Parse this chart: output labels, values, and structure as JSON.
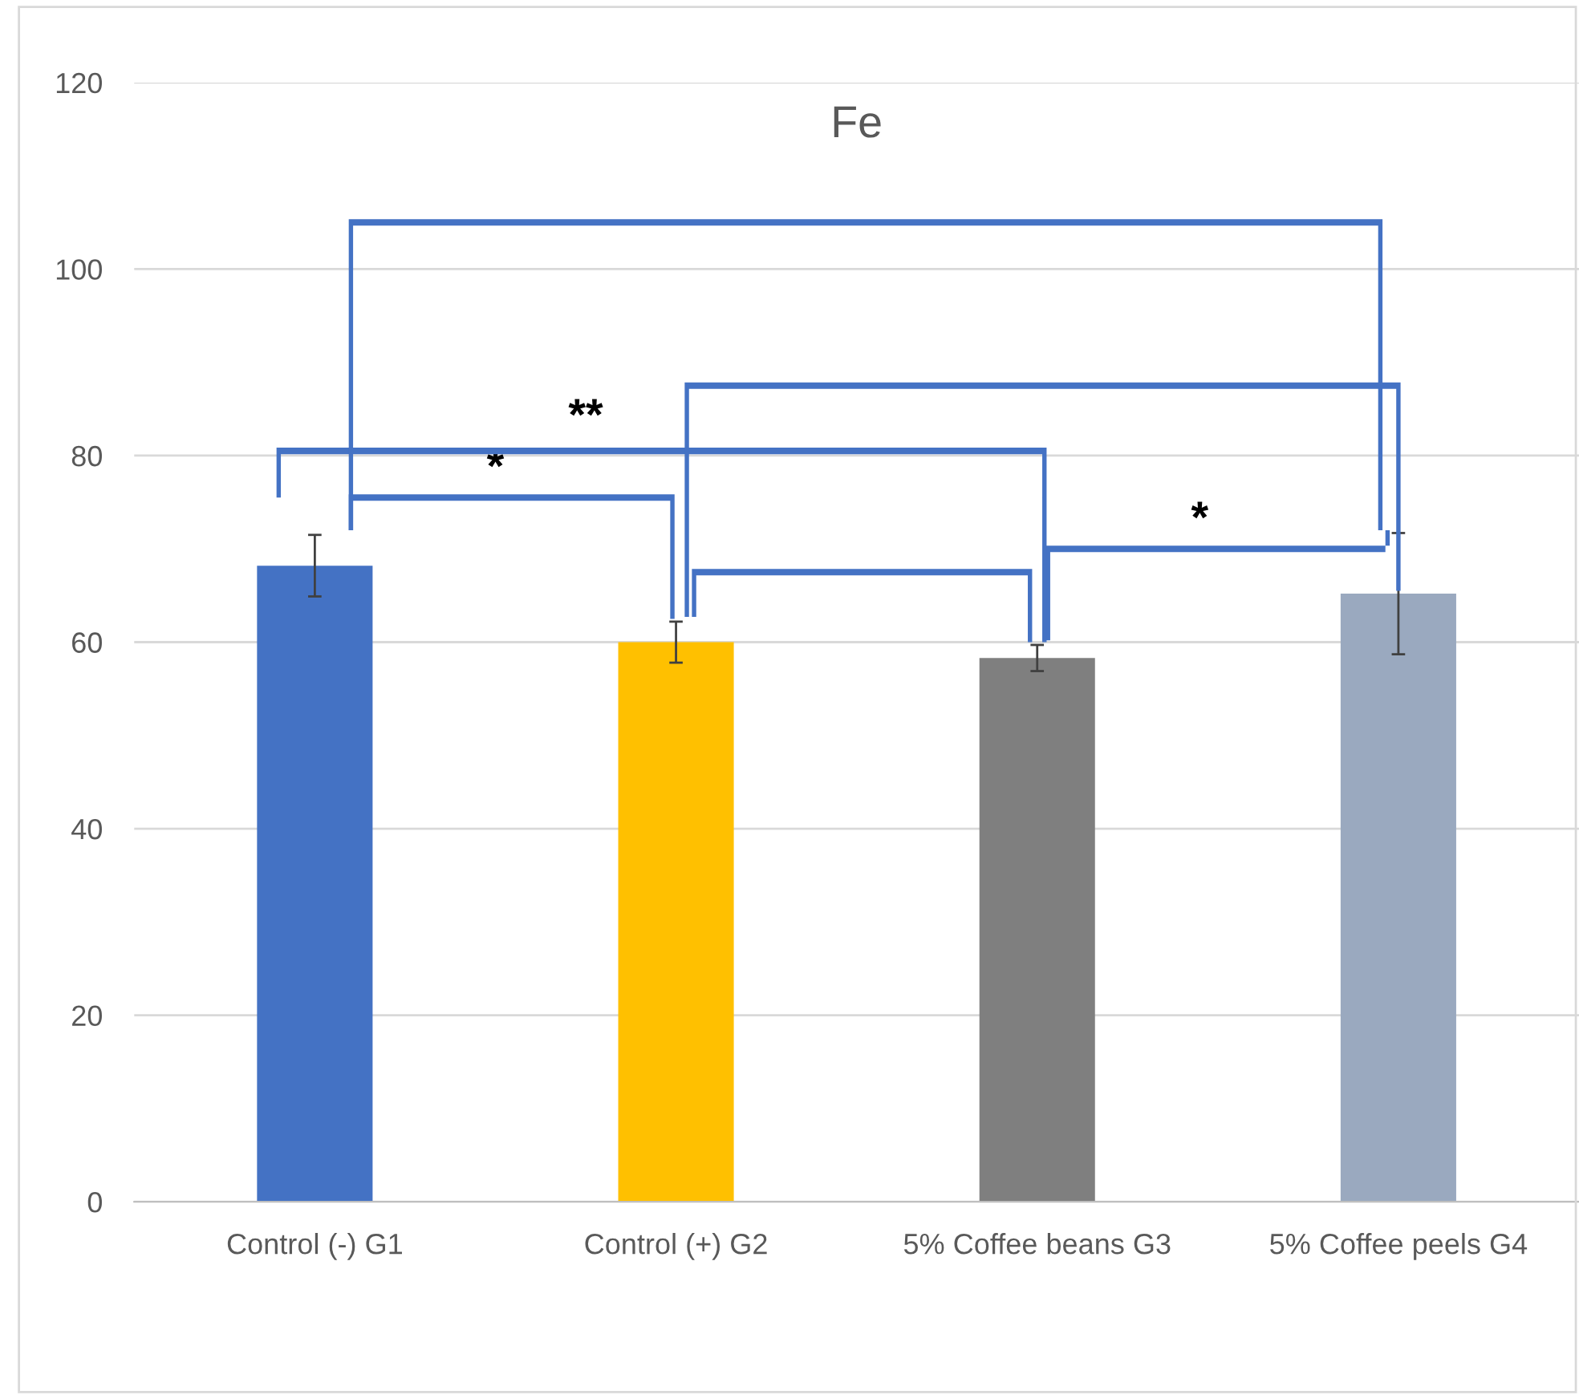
{
  "chart_data": {
    "type": "bar",
    "title": "Fe",
    "categories": [
      "Control (-) G1",
      "Control (+) G2",
      "5% Coffee beans G3",
      "5% Coffee peels G4"
    ],
    "values": [
      68.2,
      60.0,
      58.3,
      65.2
    ],
    "colors": [
      "#4472c4",
      "#ffc000",
      "#7f7f7f",
      "#9aa9bf"
    ],
    "errors": [
      3.3,
      2.2,
      1.4,
      6.5
    ],
    "ylim": [
      0,
      120
    ],
    "yticks": [
      0,
      20,
      40,
      60,
      80,
      100,
      120
    ],
    "grid": "y",
    "annotations": [
      "*",
      "**",
      "*"
    ]
  }
}
